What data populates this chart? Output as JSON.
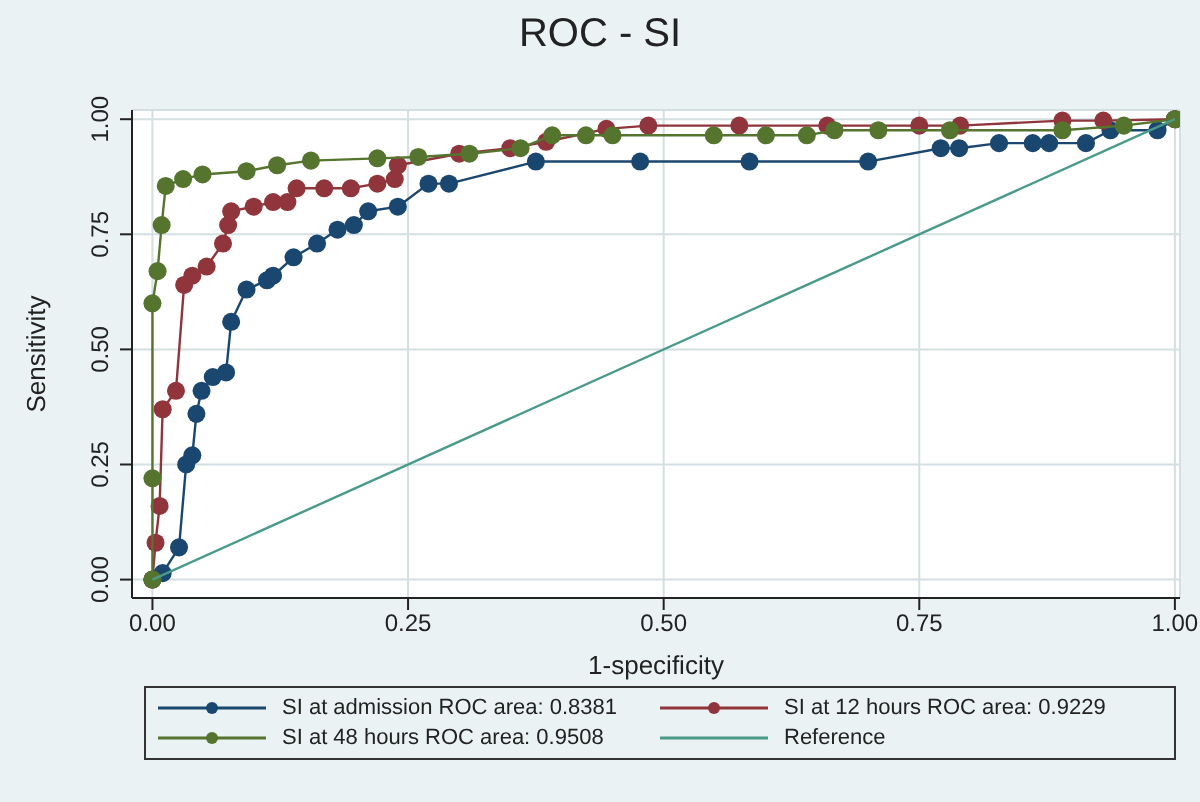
{
  "chart_data": {
    "type": "line",
    "title": "ROC - SI",
    "xlabel": "1-specificity",
    "ylabel": "Sensitivity",
    "xlim": [
      -0.02,
      1.005
    ],
    "ylim": [
      -0.04,
      1.02
    ],
    "xticks": [
      {
        "value": 0,
        "label": "0.00"
      },
      {
        "value": 0.25,
        "label": "0.25"
      },
      {
        "value": 0.5,
        "label": "0.50"
      },
      {
        "value": 0.75,
        "label": "0.75"
      },
      {
        "value": 1,
        "label": "1.00"
      }
    ],
    "yticks": [
      {
        "value": 0,
        "label": "0.00"
      },
      {
        "value": 0.25,
        "label": "0.25"
      },
      {
        "value": 0.5,
        "label": "0.50"
      },
      {
        "value": 0.75,
        "label": "0.75"
      },
      {
        "value": 1,
        "label": "1.00"
      }
    ],
    "grid": true,
    "legend": "bottom",
    "marker": "circle",
    "line_style": "solid",
    "series": [
      {
        "name": "SI at admission ROC area: 0.8381",
        "color": "#1a476f",
        "x": [
          0,
          0.01,
          0.026,
          0.033,
          0.039,
          0.043,
          0.048,
          0.059,
          0.072,
          0.077,
          0.092,
          0.112,
          0.118,
          0.138,
          0.161,
          0.181,
          0.197,
          0.211,
          0.24,
          0.27,
          0.29,
          0.375,
          0.477,
          0.584,
          0.7,
          0.771,
          0.789,
          0.828,
          0.861,
          0.877,
          0.913,
          0.937,
          0.983,
          1
        ],
        "values": [
          0,
          0.014,
          0.07,
          0.25,
          0.27,
          0.36,
          0.41,
          0.44,
          0.45,
          0.56,
          0.63,
          0.65,
          0.66,
          0.7,
          0.73,
          0.76,
          0.77,
          0.8,
          0.81,
          0.86,
          0.86,
          0.908,
          0.908,
          0.908,
          0.908,
          0.937,
          0.937,
          0.948,
          0.948,
          0.948,
          0.948,
          0.976,
          0.976,
          1
        ]
      },
      {
        "name": "SI at 12 hours ROC area: 0.9229",
        "color": "#90353b",
        "x": [
          0,
          0.003,
          0.007,
          0.01,
          0.023,
          0.031,
          0.039,
          0.053,
          0.069,
          0.074,
          0.077,
          0.099,
          0.118,
          0.132,
          0.141,
          0.168,
          0.194,
          0.22,
          0.237,
          0.24,
          0.3,
          0.35,
          0.385,
          0.444,
          0.485,
          0.574,
          0.66,
          0.75,
          0.79,
          0.89,
          0.93,
          1
        ],
        "values": [
          0,
          0.08,
          0.16,
          0.37,
          0.41,
          0.64,
          0.66,
          0.68,
          0.73,
          0.77,
          0.8,
          0.81,
          0.82,
          0.82,
          0.85,
          0.85,
          0.85,
          0.86,
          0.87,
          0.9,
          0.925,
          0.937,
          0.951,
          0.979,
          0.986,
          0.986,
          0.986,
          0.986,
          0.986,
          0.997,
          0.997,
          1
        ]
      },
      {
        "name": "SI at 48 hours ROC area: 0.9508",
        "color": "#55752f",
        "x": [
          0,
          0,
          0,
          0.005,
          0.009,
          0.013,
          0.03,
          0.049,
          0.092,
          0.122,
          0.155,
          0.22,
          0.26,
          0.31,
          0.36,
          0.391,
          0.424,
          0.45,
          0.549,
          0.6,
          0.64,
          0.667,
          0.71,
          0.78,
          0.89,
          0.95,
          1
        ],
        "values": [
          0,
          0.22,
          0.6,
          0.67,
          0.77,
          0.855,
          0.87,
          0.88,
          0.887,
          0.9,
          0.91,
          0.915,
          0.918,
          0.925,
          0.937,
          0.965,
          0.965,
          0.965,
          0.965,
          0.965,
          0.965,
          0.976,
          0.976,
          0.976,
          0.976,
          0.986,
          1
        ]
      },
      {
        "name": "Reference",
        "color": "#4a9a8a",
        "marker": "none",
        "x": [
          0,
          1
        ],
        "values": [
          0,
          1
        ]
      }
    ]
  }
}
